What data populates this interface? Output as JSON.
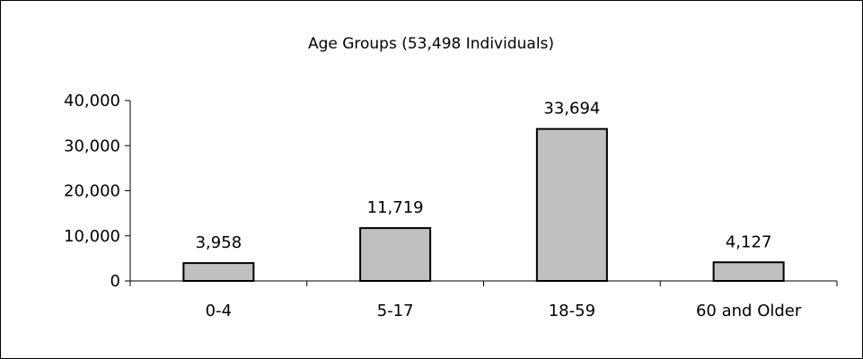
{
  "chart_data": {
    "type": "bar",
    "title": "Age Groups (53,498 Individuals)",
    "xlabel": "",
    "ylabel": "",
    "categories": [
      "0-4",
      "5-17",
      "18-59",
      "60 and Older"
    ],
    "values": [
      3958,
      11719,
      33694,
      4127
    ],
    "value_labels": [
      "3,958",
      "11,719",
      "33,694",
      "4,127"
    ],
    "ylim": [
      0,
      40000
    ],
    "y_ticks": [
      0,
      10000,
      20000,
      30000,
      40000
    ],
    "y_tick_labels": [
      "0",
      "10,000",
      "20,000",
      "30,000",
      "40,000"
    ],
    "grid": false,
    "legend": "none",
    "bar_color": "#c0c0c0",
    "bar_edge_color": "#000000"
  }
}
